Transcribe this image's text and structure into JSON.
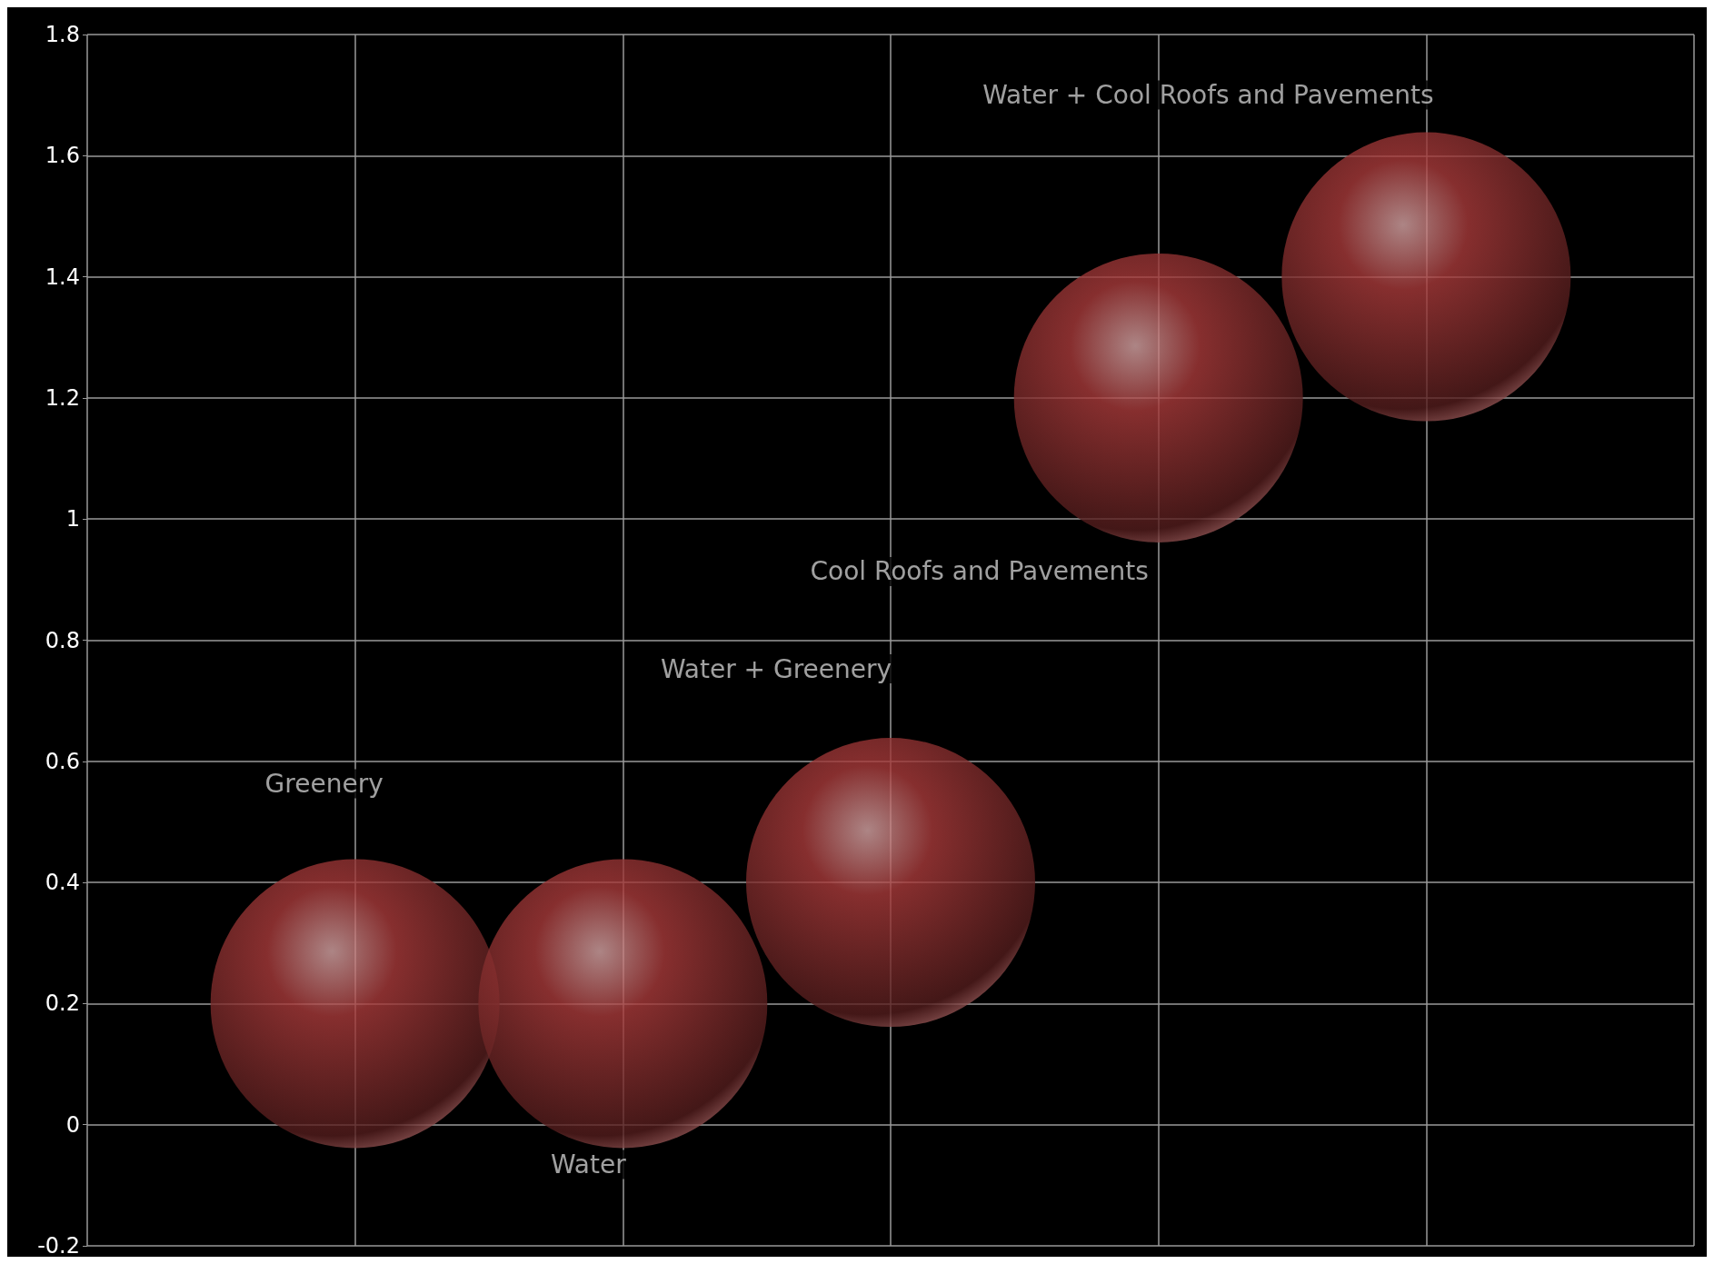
{
  "chart_data": {
    "type": "bubble",
    "categories": [
      null,
      null,
      null,
      null,
      null
    ],
    "series": [
      {
        "name": "Greenery",
        "color": "#a83a3a",
        "values": [
          0.2,
          null,
          null,
          null,
          null
        ],
        "sizes": [
          1,
          null,
          null,
          null,
          null
        ]
      },
      {
        "name": "Water",
        "color": "#a83a3a",
        "values": [
          null,
          0.2,
          null,
          null,
          null
        ],
        "sizes": [
          null,
          1,
          null,
          null,
          null
        ]
      },
      {
        "name": "Water + Greenery",
        "color": "#a83a3a",
        "values": [
          null,
          null,
          0.4,
          null,
          null
        ],
        "sizes": [
          null,
          null,
          1,
          null,
          null
        ]
      },
      {
        "name": "Cool Roofs and Pavements",
        "color": "#a83a3a",
        "values": [
          null,
          null,
          null,
          1.2,
          null
        ],
        "sizes": [
          null,
          null,
          null,
          1,
          null
        ]
      },
      {
        "name": "Water + Cool Roofs and Pavements",
        "color": "#a83a3a",
        "values": [
          null,
          null,
          null,
          null,
          1.4
        ],
        "sizes": [
          null,
          null,
          null,
          null,
          1
        ]
      }
    ],
    "ylim": [
      -0.2,
      1.8
    ],
    "yticks": [
      -0.2,
      0,
      0.2,
      0.4,
      0.6,
      0.8,
      1,
      1.2,
      1.4,
      1.6,
      1.8
    ],
    "grid": true,
    "legend": false,
    "tick_labels": "y"
  }
}
